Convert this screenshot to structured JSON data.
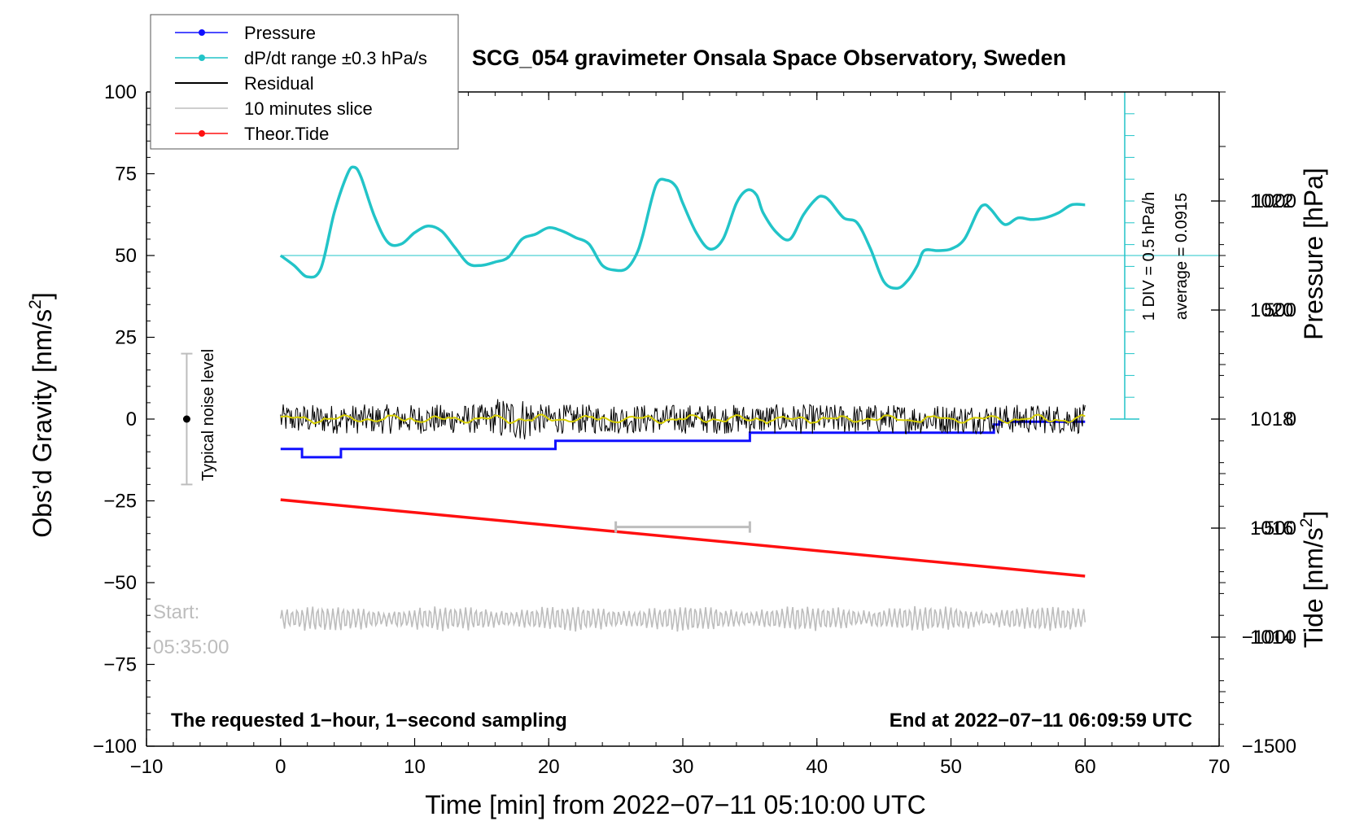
{
  "chart_data": {
    "type": "line",
    "title": "SCG_054 gravimeter Onsala Space Observatory, Sweden",
    "xlabel": "Time [min] from 2022−07−11 05:10:00 UTC",
    "ylabel_left_main": "Obs’d Gravity [nm/s",
    "ylabel_left_sup": "2",
    "ylabel_left_end": "]",
    "ylabel_right_top": "Pressure [hPa]",
    "ylabel_right_bottom_main": "Tide [nm/s",
    "ylabel_right_bottom_sup": "2",
    "ylabel_right_bottom_end": "]",
    "xlim": [
      -10,
      70
    ],
    "ylim_gravity": [
      -100,
      100
    ],
    "ylim_pressure": [
      1012,
      1024
    ],
    "ylim_tide": [
      -1500,
      1500
    ],
    "x_ticks": [
      "−10",
      "0",
      "10",
      "20",
      "30",
      "40",
      "50",
      "60",
      "70"
    ],
    "y_ticks_gravity": [
      "100",
      "75",
      "50",
      "25",
      "0",
      "−25",
      "−50",
      "−75",
      "−100"
    ],
    "y_ticks_pressure": [
      "1022",
      "1020",
      "1018",
      "1016",
      "1014"
    ],
    "y_ticks_tide": [
      "1000",
      "500",
      "0",
      "−500",
      "−1000",
      "−1500"
    ],
    "legend": [
      {
        "label": "Pressure",
        "color": "#1010ff",
        "marker": true
      },
      {
        "label": "dP/dt range ±0.3 hPa/s",
        "color": "#22c4c8",
        "marker": true
      },
      {
        "label": "Residual",
        "color": "#000000",
        "marker": false
      },
      {
        "label": "10 minutes slice",
        "color": "#bdbdbd",
        "marker": false
      },
      {
        "label": "Theor.Tide",
        "color": "#ff1010",
        "marker": true
      }
    ],
    "pressure_series": {
      "name": "Pressure",
      "color": "#1010ff",
      "x": [
        0,
        1.6,
        1.6,
        4.5,
        4.5,
        20.5,
        20.5,
        35,
        35,
        53.2,
        53.2,
        53.6,
        53.6,
        60
      ],
      "y": [
        1017.45,
        1017.45,
        1017.3,
        1017.3,
        1017.45,
        1017.45,
        1017.6,
        1017.6,
        1017.75,
        1017.75,
        1017.9,
        1017.9,
        1017.95,
        1017.95
      ]
    },
    "dpdt_series": {
      "name": "dP/dt",
      "color": "#22c4c8",
      "x": [
        0,
        1,
        2,
        3,
        4,
        5,
        5.5,
        6,
        7,
        8,
        9,
        10,
        11,
        12,
        13,
        14,
        15,
        16,
        17,
        18,
        19,
        20,
        21,
        22,
        23,
        24,
        25,
        25.8,
        26.5,
        27,
        28,
        28.8,
        29.5,
        30,
        31,
        32,
        33,
        34,
        34.8,
        35.5,
        36,
        37,
        38,
        39,
        40,
        40.5,
        41,
        42,
        43,
        44,
        45,
        46,
        46.8,
        47.5,
        48,
        49,
        50,
        51,
        52,
        52.5,
        53,
        54,
        55,
        56,
        57,
        58,
        59,
        60
      ],
      "y": [
        50,
        47,
        43.5,
        46,
        63,
        75,
        77,
        74,
        62,
        54,
        53.5,
        57,
        59,
        57.5,
        52.5,
        47.5,
        47,
        48,
        49.5,
        55,
        56.5,
        58.5,
        57.5,
        55.5,
        53.5,
        47,
        45.5,
        46,
        50,
        56,
        71.5,
        73,
        71,
        66,
        57,
        52,
        55,
        66,
        70,
        68.5,
        63,
        57,
        55,
        62.5,
        67.5,
        68,
        66.5,
        61.5,
        60,
        52,
        42,
        40,
        42.5,
        47,
        51.5,
        51.5,
        52,
        55,
        63.5,
        65.5,
        64,
        59.5,
        61.5,
        61,
        61.5,
        63,
        65.5,
        65.5
      ]
    },
    "dpdt_reference": {
      "label": "average = 0.0915",
      "value_gravity_units": 50
    },
    "scale_bar_labels": [
      "1 DIV = 0.5 hPa/h",
      "average = 0.0915"
    ],
    "residual_series": {
      "name": "Residual",
      "color": "#000000",
      "center": 0,
      "amplitude_nm_s2": 4.5,
      "x_range": [
        0,
        60
      ]
    },
    "smoothed_residual": {
      "name": "smoothed",
      "color": "#d8d000"
    },
    "slice_series": {
      "name": "10 minutes slice",
      "color": "#bdbdbd",
      "center": -61,
      "amplitude_nm_s2": 3.5,
      "x_range": [
        0,
        60
      ]
    },
    "tide_series": {
      "name": "Theor.Tide",
      "color": "#ff1010",
      "x": [
        0,
        60
      ],
      "y_tide": [
        -370,
        -720
      ]
    },
    "slice_marker": {
      "x_start": 25,
      "x_end": 35,
      "y_gravity": -33
    },
    "noise_bar": {
      "x": -7,
      "y_center": 0,
      "y_half_range": 20,
      "label": "Typical noise level"
    },
    "start_label_line1": "Start:",
    "start_label_line2": "05:35:00",
    "bottom_left_note": "The requested 1−hour, 1−second sampling",
    "bottom_right_note": "End at 2022−07−11 06:09:59 UTC"
  }
}
